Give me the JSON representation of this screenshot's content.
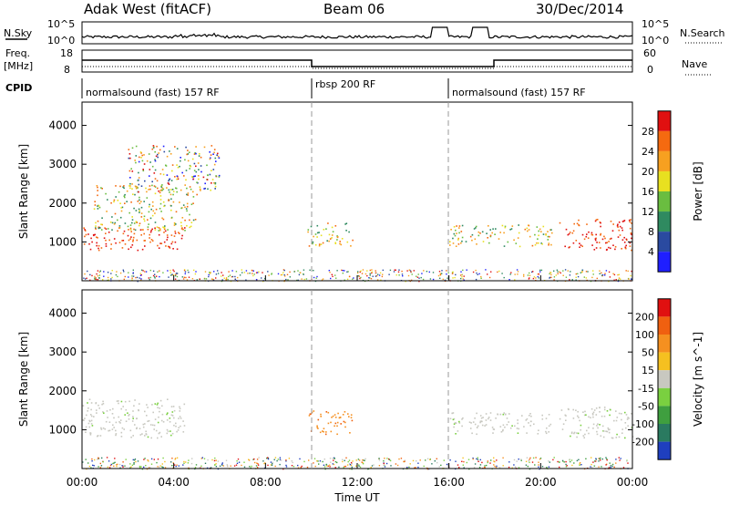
{
  "header": {
    "station": "Adak West (fitACF)",
    "beam": "Beam 06",
    "date": "30/Dec/2014"
  },
  "noise_panel": {
    "left_label": "N.Sky",
    "right_label": "N.Search",
    "ticks_left": [
      "10^5",
      "10^0"
    ],
    "ticks_right": [
      "10^5",
      "10^0"
    ]
  },
  "freq_panel": {
    "left_label_1": "Freq.",
    "left_label_2": "[MHz]",
    "right_label": "Nave",
    "ticks_left": [
      "18",
      "8"
    ],
    "ticks_right": [
      "60",
      "0"
    ]
  },
  "cpid": {
    "label": "CPID",
    "segments": [
      {
        "name": "normalsound (fast) 157 RF",
        "start_hour": 0,
        "end_hour": 10
      },
      {
        "name": "rbsp 200 RF",
        "start_hour": 10,
        "end_hour": 16
      },
      {
        "name": "normalsound (fast) 157 RF",
        "start_hour": 16,
        "end_hour": 24
      }
    ]
  },
  "chart_data": [
    {
      "type": "heatmap",
      "title": "",
      "xlabel": "Time UT",
      "ylabel": "Slant Range [km]",
      "x_range_hours": [
        0,
        24
      ],
      "ylim": [
        0,
        4600
      ],
      "x_ticks": [
        "00:00",
        "04:00",
        "08:00",
        "12:00",
        "16:00",
        "20:00",
        "00:00"
      ],
      "y_ticks": [
        1000,
        2000,
        3000,
        4000
      ],
      "colorbar": {
        "label": "Power [dB]",
        "ticks": [
          4,
          8,
          12,
          16,
          20,
          24,
          28
        ],
        "colors": [
          "#1f1fff",
          "#2a4aa0",
          "#2f8a60",
          "#6abd40",
          "#e8e020",
          "#f7a020",
          "#f56a10",
          "#e01010"
        ]
      },
      "scatter_regions": [
        {
          "t0": 0.0,
          "t1": 4.5,
          "r0": 800,
          "r1": 1400,
          "level": "high"
        },
        {
          "t0": 0.5,
          "t1": 5.0,
          "r0": 1300,
          "r1": 2500,
          "level": "medium"
        },
        {
          "t0": 2.0,
          "t1": 6.0,
          "r0": 2300,
          "r1": 3500,
          "level": "mixed"
        },
        {
          "t0": 9.8,
          "t1": 11.8,
          "r0": 900,
          "r1": 1500,
          "level": "medium"
        },
        {
          "t0": 16.0,
          "t1": 20.5,
          "r0": 900,
          "r1": 1450,
          "level": "medium"
        },
        {
          "t0": 20.8,
          "t1": 24.0,
          "r0": 800,
          "r1": 1600,
          "level": "high"
        }
      ]
    },
    {
      "type": "heatmap",
      "title": "",
      "xlabel": "Time UT",
      "ylabel": "Slant Range [km]",
      "x_range_hours": [
        0,
        24
      ],
      "ylim": [
        0,
        4600
      ],
      "x_ticks": [
        "00:00",
        "04:00",
        "08:00",
        "12:00",
        "16:00",
        "20:00",
        "00:00"
      ],
      "y_ticks": [
        1000,
        2000,
        3000,
        4000
      ],
      "colorbar": {
        "label": "Velocity [m s^-1]",
        "ticks": [
          200,
          100,
          50,
          15,
          -15,
          -50,
          -100,
          -200
        ],
        "colors": [
          "#1f3fbf",
          "#2a7a60",
          "#3f9f3f",
          "#7ad040",
          "#c8c8c0",
          "#f5c020",
          "#f59020",
          "#f06010",
          "#e01010"
        ]
      },
      "scatter_regions": [
        {
          "t0": 0.0,
          "t1": 4.5,
          "r0": 800,
          "r1": 1800,
          "level": "ground"
        },
        {
          "t0": 9.8,
          "t1": 11.8,
          "r0": 900,
          "r1": 1500,
          "level": "negative"
        },
        {
          "t0": 16.0,
          "t1": 20.5,
          "r0": 900,
          "r1": 1450,
          "level": "ground"
        },
        {
          "t0": 20.8,
          "t1": 24.0,
          "r0": 800,
          "r1": 1600,
          "level": "ground"
        }
      ]
    }
  ]
}
